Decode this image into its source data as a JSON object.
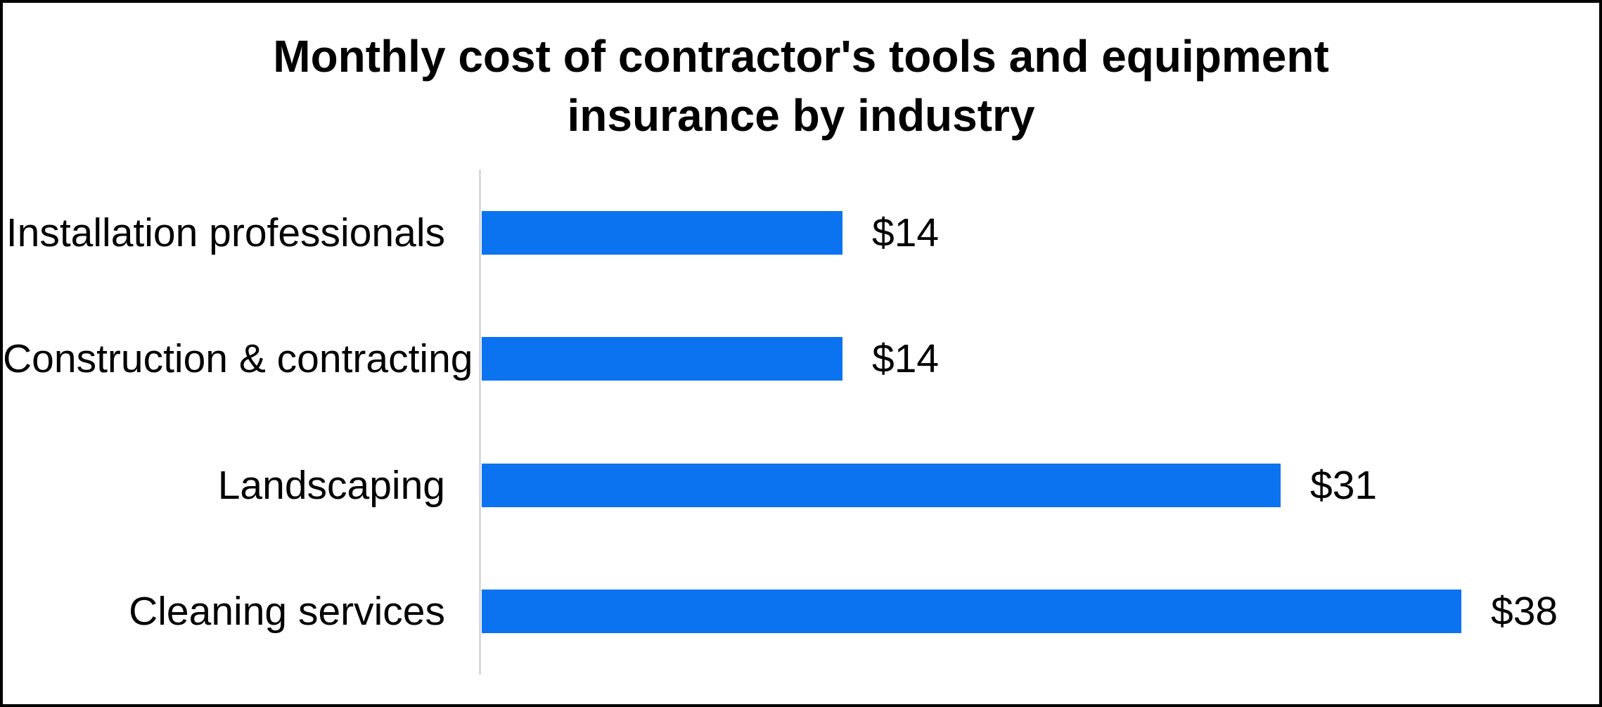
{
  "frame": {
    "border_color": "#000000",
    "background_color": "#ffffff"
  },
  "title_lines": [
    "Monthly cost of contractor's tools and equipment",
    "insurance by industry"
  ],
  "chart_data": {
    "type": "bar",
    "orientation": "horizontal",
    "title": "Monthly cost of contractor's tools and equipment insurance by industry",
    "categories": [
      "Installation professionals",
      "Construction & contracting",
      "Landscaping",
      "Cleaning services"
    ],
    "values": [
      14,
      14,
      31,
      38
    ],
    "value_labels": [
      "$14",
      "$14",
      "$31",
      "$38"
    ],
    "value_label_position": "outside-end",
    "xlabel": "",
    "ylabel": "",
    "xlim": [
      0,
      40
    ],
    "grid": false,
    "legend": false,
    "bar_color": "#0b73f0",
    "axis_line_color": "#d9d9d9",
    "text_color": "#000000"
  }
}
